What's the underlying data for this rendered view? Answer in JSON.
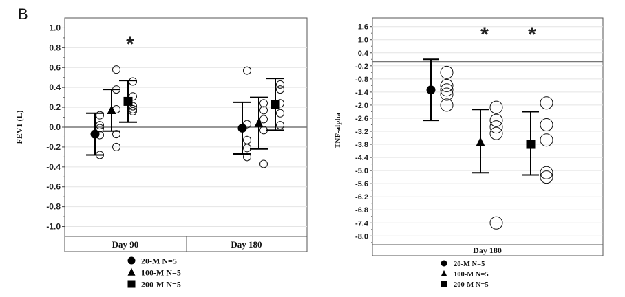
{
  "panel_label": "B",
  "chart_data": [
    {
      "type": "scatter",
      "title": "",
      "ylabel": "FEV1 (L)",
      "ylim": [
        -1.1,
        1.1
      ],
      "yticks": [
        "1.0",
        "0.8",
        "0.6",
        "0.4",
        "0.2",
        "0.0",
        "-0.2",
        "-0.4",
        "-0.6",
        "-0.8",
        "-1.0"
      ],
      "ytick_values": [
        1.0,
        0.8,
        0.6,
        0.4,
        0.2,
        0.0,
        -0.2,
        -0.4,
        -0.6,
        -0.8,
        -1.0
      ],
      "categories": [
        "Day 90",
        "Day 180"
      ],
      "reference_line": 0.0,
      "grid": true,
      "legend_position": "bottom",
      "series": [
        {
          "name": "20-M N=5",
          "marker": "circle",
          "means": [
            -0.07,
            -0.01
          ],
          "err_low": [
            -0.28,
            -0.27
          ],
          "err_high": [
            0.14,
            0.25
          ],
          "points": [
            [
              0.12,
              0.02,
              -0.01,
              -0.08,
              -0.28
            ],
            [
              0.57,
              0.03,
              -0.13,
              -0.21,
              -0.3
            ]
          ]
        },
        {
          "name": "100-M N=5",
          "marker": "triangle",
          "means": [
            0.17,
            0.04
          ],
          "err_low": [
            -0.04,
            -0.22
          ],
          "err_high": [
            0.38,
            0.3
          ],
          "points": [
            [
              0.58,
              0.38,
              0.18,
              -0.07,
              -0.2
            ],
            [
              0.24,
              0.17,
              0.08,
              -0.03,
              -0.37
            ]
          ]
        },
        {
          "name": "200-M N=5",
          "marker": "square",
          "means": [
            0.26,
            0.23
          ],
          "err_low": [
            0.05,
            -0.03
          ],
          "err_high": [
            0.47,
            0.49
          ],
          "points": [
            [
              0.46,
              0.31,
              0.21,
              0.18,
              0.16
            ],
            [
              0.43,
              0.38,
              0.24,
              0.14,
              0.02
            ]
          ]
        }
      ],
      "annotations": [
        {
          "text": "*",
          "category": "Day 90"
        }
      ]
    },
    {
      "type": "scatter",
      "title": "",
      "ylabel": "TNF-alpha",
      "ylim": [
        -8.4,
        2.0
      ],
      "yticks": [
        "1.6",
        "1.0",
        "0.4",
        "-0.2",
        "-0.8",
        "-1.4",
        "-2.0",
        "-2.6",
        "-3.2",
        "-3.8",
        "-4.4",
        "-5.0",
        "-5.6",
        "-6.2",
        "-6.8",
        "-7.4",
        "-8.0"
      ],
      "ytick_values": [
        1.6,
        1.0,
        0.4,
        -0.2,
        -0.8,
        -1.4,
        -2.0,
        -2.6,
        -3.2,
        -3.8,
        -4.4,
        -5.0,
        -5.6,
        -6.2,
        -6.8,
        -7.4,
        -8.0
      ],
      "categories": [
        "Day 180"
      ],
      "reference_line": 0.0,
      "grid": true,
      "legend_position": "bottom",
      "series": [
        {
          "name": "20-M N=5",
          "marker": "circle",
          "means": [
            -1.3
          ],
          "err_low": [
            -2.7
          ],
          "err_high": [
            0.1
          ],
          "points": [
            [
              -0.5,
              -1.1,
              -1.3,
              -1.5,
              -2.0
            ]
          ]
        },
        {
          "name": "100-M N=5",
          "marker": "triangle",
          "means": [
            -3.7
          ],
          "err_low": [
            -5.1
          ],
          "err_high": [
            -2.2
          ],
          "points": [
            [
              -2.1,
              -2.7,
              -3.0,
              -3.3,
              -7.4
            ]
          ]
        },
        {
          "name": "200-M N=5",
          "marker": "square",
          "means": [
            -3.8
          ],
          "err_low": [
            -5.2
          ],
          "err_high": [
            -2.3
          ],
          "points": [
            [
              -1.9,
              -2.9,
              -3.6,
              -5.1,
              -5.3
            ]
          ]
        }
      ],
      "annotations": [
        {
          "text": "*",
          "series": "100-M N=5"
        },
        {
          "text": "*",
          "series": "200-M N=5"
        }
      ]
    }
  ]
}
